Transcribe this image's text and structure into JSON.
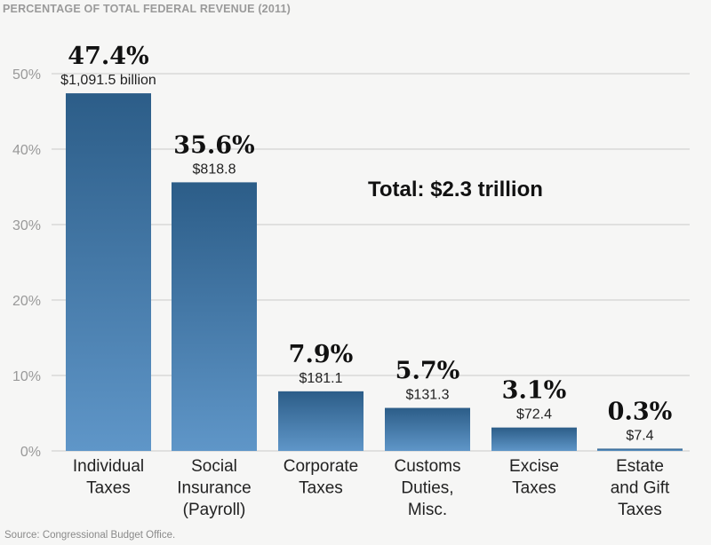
{
  "chart_data": {
    "type": "bar",
    "title": "PERCENTAGE OF TOTAL FEDERAL REVENUE (2011)",
    "categories": [
      [
        "Individual",
        "Taxes"
      ],
      [
        "Social",
        "Insurance",
        "(Payroll)"
      ],
      [
        "Corporate",
        "Taxes"
      ],
      [
        "Customs",
        "Duties,",
        "Misc."
      ],
      [
        "Excise",
        "Taxes"
      ],
      [
        "Estate",
        "and Gift",
        "Taxes"
      ]
    ],
    "values": [
      47.4,
      35.6,
      7.9,
      5.7,
      3.1,
      0.3
    ],
    "percent_labels": [
      "47.4%",
      "35.6%",
      "7.9%",
      "5.7%",
      "3.1%",
      "0.3%"
    ],
    "value_labels": [
      "$1,091.5 billion",
      "$818.8",
      "$181.1",
      "$131.3",
      "$72.4",
      "$7.4"
    ],
    "yticks": [
      "0%",
      "10%",
      "20%",
      "30%",
      "40%",
      "50%"
    ],
    "ylim": [
      0,
      50
    ],
    "grid": true,
    "annotation": "Total: $2.3 trillion",
    "source": "Source: Congressional Budget Office.",
    "colors": {
      "bar_top": "#2c5d88",
      "bar_bottom": "#5f96c8",
      "grid": "#d8d8d8"
    }
  }
}
